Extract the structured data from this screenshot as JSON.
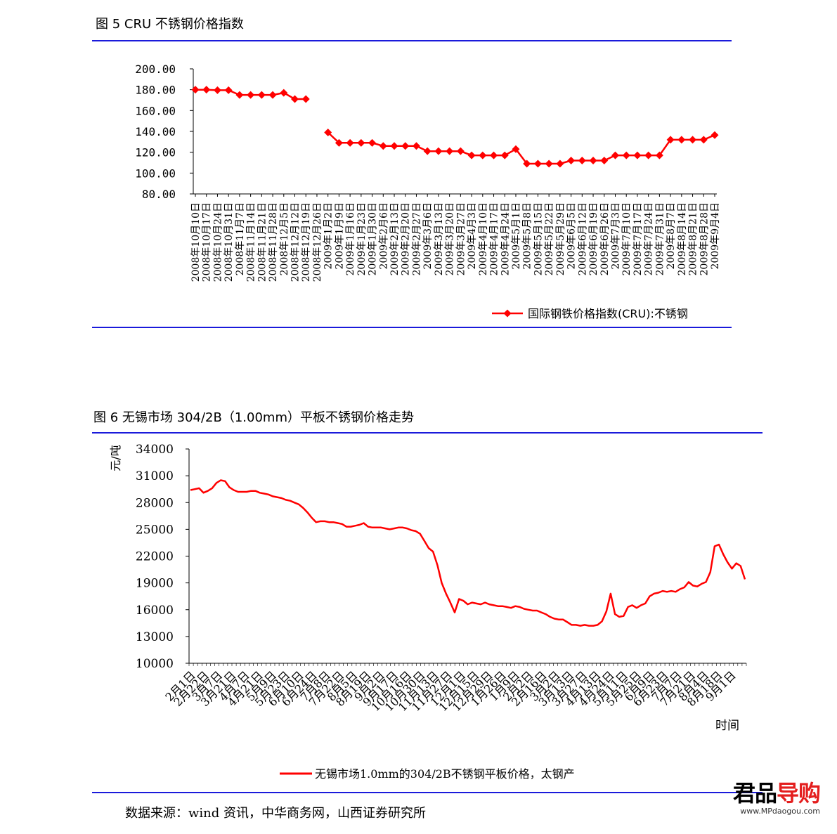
{
  "fig5": {
    "title": "图 5 CRU 不锈钢价格指数",
    "chart_data": {
      "type": "line",
      "title": "图 5 CRU 不锈钢价格指数",
      "ylim": [
        80,
        200
      ],
      "yticks": [
        "200.00",
        "180.00",
        "160.00",
        "140.00",
        "120.00",
        "100.00",
        "80.00"
      ],
      "categories": [
        "2008年10月10日",
        "2008年10月17日",
        "2008年10月24日",
        "2008年10月31日",
        "2008年11月7日",
        "2008年11月14日",
        "2008年11月21日",
        "2008年11月28日",
        "2008年12月5日",
        "2008年12月12日",
        "2008年12月19日",
        "2008年12月26日",
        "2009年1月2日",
        "2009年1月9日",
        "2009年1月16日",
        "2009年1月23日",
        "2009年1月30日",
        "2009年2月6日",
        "2009年2月13日",
        "2009年2月20日",
        "2009年2月27日",
        "2009年3月6日",
        "2009年3月13日",
        "2009年3月20日",
        "2009年3月27日",
        "2009年4月3日",
        "2009年4月10日",
        "2009年4月17日",
        "2009年4月24日",
        "2009年5月1日",
        "2009年5月8日",
        "2009年5月15日",
        "2009年5月22日",
        "2009年5月29日",
        "2009年6月5日",
        "2009年6月12日",
        "2009年6月19日",
        "2009年6月26日",
        "2009年7月3日",
        "2009年7月10日",
        "2009年7月17日",
        "2009年7月24日",
        "2009年7月31日",
        "2009年8月7日",
        "2009年8月14日",
        "2009年8月21日",
        "2009年8月28日",
        "2009年9月4日"
      ],
      "series": [
        {
          "name": "国际钢铁价格指数(CRU):不锈钢",
          "color": "#ff0000",
          "values": [
            180,
            180,
            179.5,
            179.5,
            175,
            175,
            175,
            175,
            177,
            171,
            171,
            null,
            139,
            129,
            129,
            129,
            129,
            126,
            126,
            126,
            126,
            121,
            121,
            121,
            121,
            117,
            117,
            117,
            117,
            123,
            109,
            109,
            109,
            109,
            112,
            112,
            112,
            112,
            117,
            117,
            117,
            117,
            117,
            132,
            132,
            132,
            132,
            136.5
          ]
        }
      ],
      "legend_position": "bottom-right",
      "grid": false
    }
  },
  "fig6": {
    "title": "图 6 无锡市场 304/2B（1.00mm）平板不锈钢价格走势",
    "chart_data": {
      "type": "line",
      "title": "图 6 无锡市场 304/2B（1.00mm）平板不锈钢价格走势",
      "ylabel": "元/吨",
      "xlabel": "时间",
      "ylim": [
        10000,
        34000
      ],
      "yticks": [
        "34000",
        "31000",
        "28000",
        "25000",
        "22000",
        "19000",
        "16000",
        "13000",
        "10000"
      ],
      "xtick_labels": [
        "2月1日",
        "2月22日",
        "3月7日",
        "3月21日",
        "4月7日",
        "4月21日",
        "5月9日",
        "5月23日",
        "6月10日",
        "6月24日",
        "7月8日",
        "7月22日",
        "8月5日",
        "8月19日",
        "9月2日",
        "9月17日",
        "10月16日",
        "10月30日",
        "11月13日",
        "11月27日",
        "12月1日",
        "12月15日",
        "12月29日",
        "1月26日",
        "1月9日",
        "2月2日",
        "2月16日",
        "3月2日",
        "3月13日",
        "3月27日",
        "4月13日",
        "4月24日",
        "5月11日",
        "5月25日",
        "6月9日",
        "6月23日",
        "7月7日",
        "7月21日",
        "8月4日",
        "8月18日",
        "9月1日"
      ],
      "series": [
        {
          "name": "无锡市场1.0mm的304/2B不锈钢平板价格，太钢产",
          "color": "#ff0000",
          "values": [
            29400,
            29500,
            29600,
            29100,
            29300,
            29600,
            30200,
            30500,
            30400,
            29700,
            29400,
            29200,
            29200,
            29200,
            29300,
            29300,
            29100,
            29000,
            28900,
            28700,
            28600,
            28500,
            28300,
            28200,
            28000,
            27800,
            27400,
            26900,
            26300,
            25800,
            25900,
            25900,
            25800,
            25800,
            25700,
            25600,
            25300,
            25300,
            25400,
            25500,
            25700,
            25300,
            25200,
            25200,
            25200,
            25100,
            25000,
            25100,
            25200,
            25200,
            25100,
            24900,
            24800,
            24500,
            23700,
            22900,
            22500,
            21000,
            19000,
            17800,
            16800,
            15700,
            17200,
            17000,
            16600,
            16800,
            16700,
            16600,
            16800,
            16600,
            16500,
            16400,
            16400,
            16300,
            16200,
            16400,
            16300,
            16100,
            16000,
            15900,
            15900,
            15700,
            15500,
            15200,
            15000,
            14900,
            14900,
            14600,
            14300,
            14300,
            14200,
            14300,
            14200,
            14200,
            14300,
            14700,
            15800,
            17800,
            15500,
            15200,
            15300,
            16300,
            16500,
            16200,
            16500,
            16700,
            17500,
            17800,
            17900,
            18100,
            18000,
            18100,
            18000,
            18300,
            18500,
            19100,
            18700,
            18600,
            18900,
            19100,
            20200,
            23100,
            23300,
            22200,
            21300,
            20600,
            21200,
            20900,
            19400
          ]
        }
      ],
      "legend_position": "bottom",
      "grid": false
    }
  },
  "source": "数据来源：wind 资讯，中华商务网，山西证券研究所",
  "watermark": {
    "brand_a": "君品",
    "brand_b": "导购",
    "url": "www.MPdaogou.com"
  }
}
